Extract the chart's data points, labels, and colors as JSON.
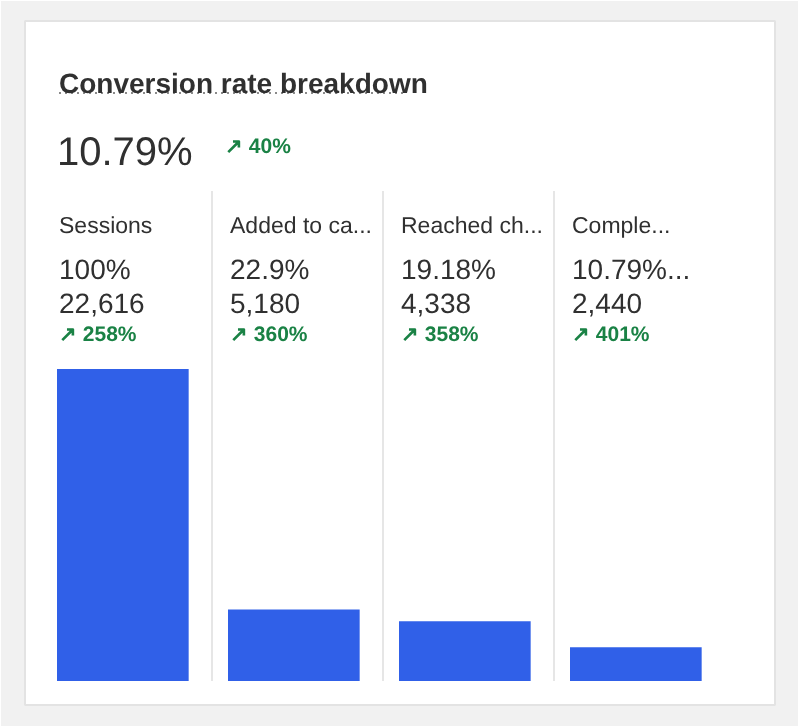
{
  "chart_data": {
    "type": "bar",
    "title": "Conversion rate breakdown",
    "subtitle": "10.79%",
    "categories": [
      "Sessions",
      "Added to ca...",
      "Reached ch...",
      "Comple..."
    ],
    "values": [
      100,
      22.9,
      19.18,
      10.79
    ],
    "value_labels": [
      "100%",
      "22.9%",
      "19.18%",
      "10.79%..."
    ],
    "color": "#3060e8",
    "annotations": [
      "↗ 40%",
      "22,616",
      "↗ 258%",
      "5,180",
      "↗ 360%",
      "4,338",
      "↗ 358%",
      "2,440",
      "↗ 401%"
    ]
  }
}
